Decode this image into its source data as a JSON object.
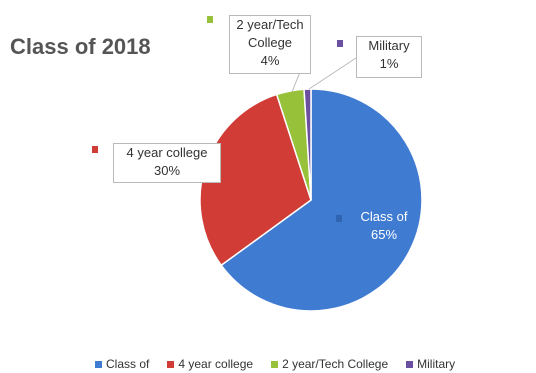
{
  "chart_data": {
    "type": "pie",
    "title": "Class of 2018",
    "legend_position": "bottom",
    "slices": [
      {
        "label": "Class of",
        "value": 65,
        "value_label": "65%",
        "color": "#3f7bd1"
      },
      {
        "label": "4 year college",
        "value": 30,
        "value_label": "30%",
        "color": "#d13c37"
      },
      {
        "label": "2 year/Tech College",
        "value": 4,
        "value_label": "4%",
        "color": "#98c13a"
      },
      {
        "label": "Military",
        "value": 1,
        "value_label": "1%",
        "color": "#6b4fa0"
      }
    ],
    "data_labels": [
      {
        "lines": [
          "Class of",
          "65%"
        ]
      },
      {
        "lines": [
          "4 year college",
          "30%"
        ]
      },
      {
        "lines": [
          "2 year/Tech",
          "College",
          "4%"
        ]
      },
      {
        "lines": [
          "Military",
          "1%"
        ]
      }
    ]
  }
}
